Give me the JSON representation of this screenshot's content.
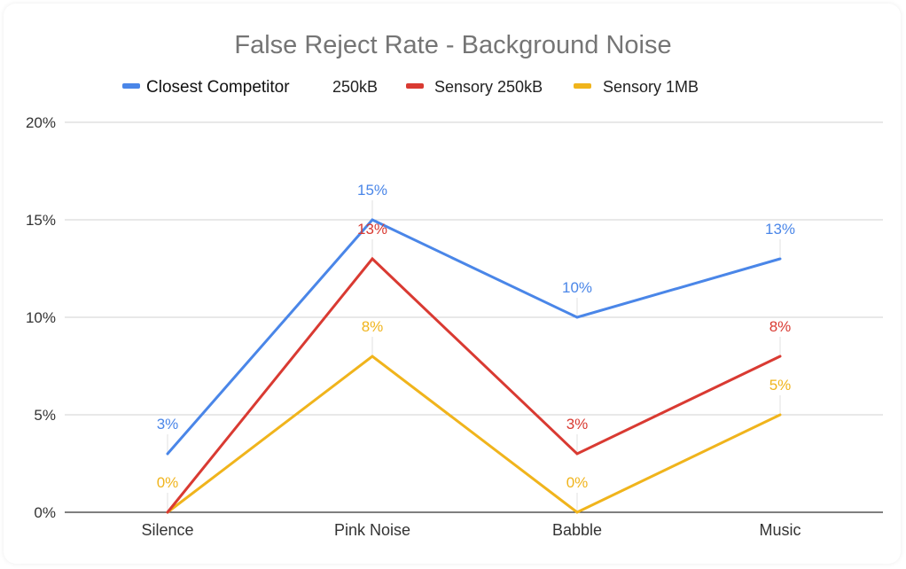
{
  "chart_data": {
    "type": "line",
    "title": "False Reject Rate - Background Noise",
    "categories": [
      "Silence",
      "Pink Noise",
      "Babble",
      "Music"
    ],
    "series": [
      {
        "name": "Closest Competitor",
        "legend_extra": "250kB",
        "color": "#4a86e8",
        "values": [
          3,
          15,
          10,
          13
        ],
        "labels": [
          "3%",
          "15%",
          "10%",
          "13%"
        ]
      },
      {
        "name": "Sensory 250kB",
        "color": "#d93a32",
        "values": [
          0,
          13,
          3,
          8
        ],
        "labels": [
          "",
          "13%",
          "3%",
          "8%"
        ]
      },
      {
        "name": "Sensory 1MB",
        "color": "#f0b41c",
        "values": [
          0,
          8,
          0,
          5
        ],
        "labels": [
          "0%",
          "8%",
          "0%",
          "5%"
        ]
      }
    ],
    "ylim": [
      0,
      20
    ],
    "yticks": [
      0,
      5,
      10,
      15,
      20
    ],
    "ytick_labels": [
      "0%",
      "5%",
      "10%",
      "15%",
      "20%"
    ],
    "grid": true,
    "legend_position": "top"
  }
}
